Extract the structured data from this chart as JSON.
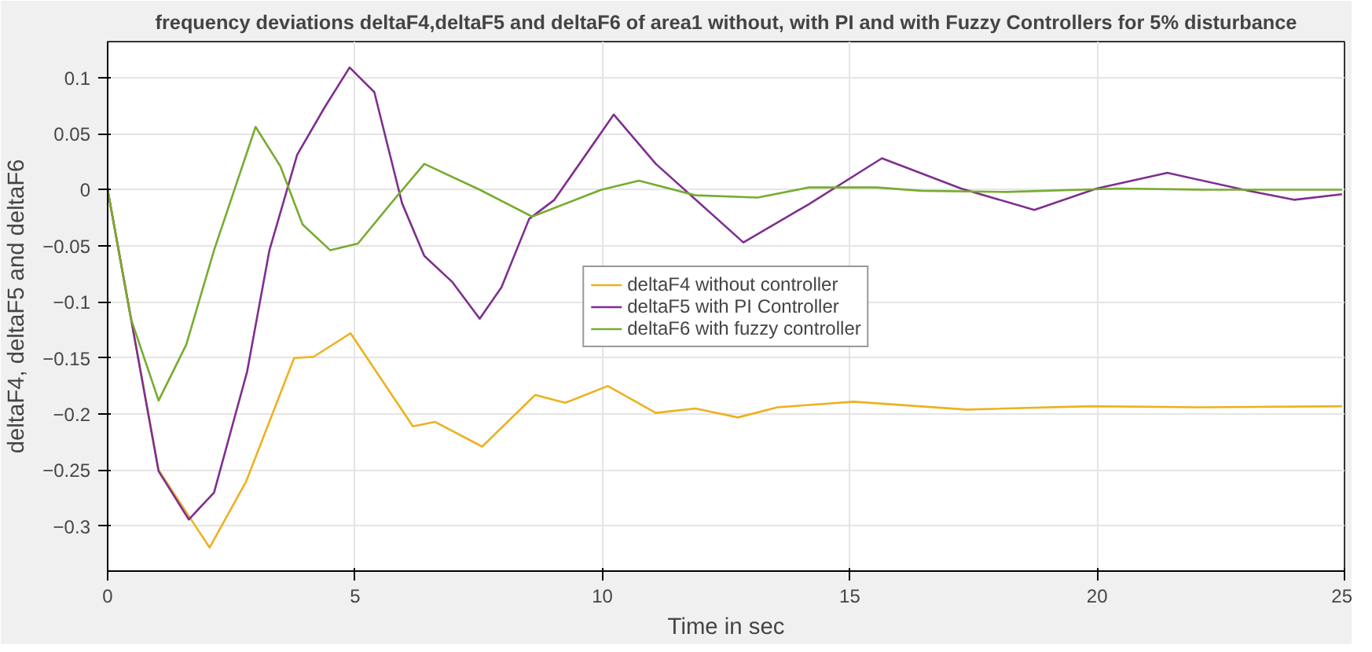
{
  "chart_data": {
    "type": "line",
    "title": "frequency deviations deltaF4,deltaF5 and deltaF6 of area1 without, with PI and with Fuzzy Controllers for 5% disturbance",
    "xlabel": "Time in sec",
    "ylabel": "deltaF4, deltaF5 and deltaF6",
    "xlim": [
      0,
      25
    ],
    "ylim": [
      -0.34,
      0.132
    ],
    "xticks": [
      0,
      5,
      10,
      15,
      20,
      25
    ],
    "yticks": [
      -0.3,
      -0.25,
      -0.2,
      -0.15,
      -0.1,
      -0.05,
      0,
      0.05,
      0.1
    ],
    "grid": true,
    "legend": "center",
    "marker": "none",
    "line_style": "solid",
    "series": [
      {
        "name": "deltaF4 without controller",
        "color": "#edb120",
        "x": [
          0,
          1.03,
          2.06,
          2.8,
          3.77,
          4.16,
          4.91,
          6.17,
          6.62,
          7.57,
          8.64,
          9.25,
          10.11,
          11.08,
          11.88,
          12.74,
          13.54,
          15.08,
          17.36,
          19.87,
          22.16,
          24.95
        ],
        "values": [
          0,
          -0.25,
          -0.319,
          -0.26,
          -0.15,
          -0.149,
          -0.128,
          -0.211,
          -0.207,
          -0.229,
          -0.183,
          -0.19,
          -0.175,
          -0.199,
          -0.195,
          -0.203,
          -0.194,
          -0.189,
          -0.196,
          -0.193,
          -0.194,
          -0.193
        ]
      },
      {
        "name": "deltaF5 with PI Controller",
        "color": "#7e2f8e",
        "x": [
          0,
          1.03,
          1.64,
          2.15,
          2.82,
          3.27,
          3.83,
          4.38,
          4.89,
          5.39,
          5.95,
          6.4,
          6.96,
          7.52,
          7.96,
          8.52,
          9.03,
          10.23,
          11.08,
          12.85,
          14.17,
          15.65,
          17.25,
          18.73,
          19.99,
          21.42,
          23.07,
          23.98,
          24.95
        ],
        "values": [
          0,
          -0.251,
          -0.294,
          -0.27,
          -0.162,
          -0.054,
          0.031,
          0.073,
          0.109,
          0.087,
          -0.012,
          -0.059,
          -0.082,
          -0.115,
          -0.087,
          -0.026,
          -0.009,
          0.067,
          0.023,
          -0.047,
          -0.013,
          0.028,
          0.001,
          -0.018,
          0.001,
          0.015,
          -0.001,
          -0.009,
          -0.004
        ]
      },
      {
        "name": "deltaF6 with fuzzy controller",
        "color": "#77ac30",
        "x": [
          0,
          0.47,
          1.03,
          1.59,
          2.15,
          2.99,
          3.49,
          3.94,
          4.5,
          5.06,
          5.73,
          6.4,
          7.52,
          8.58,
          9.98,
          10.74,
          11.88,
          13.14,
          14.17,
          15.54,
          16.45,
          18.16,
          20.45,
          22.16,
          24.95
        ],
        "values": [
          0,
          -0.115,
          -0.188,
          -0.138,
          -0.054,
          0.056,
          0.021,
          -0.031,
          -0.054,
          -0.048,
          -0.012,
          0.023,
          0,
          -0.024,
          0,
          0.008,
          -0.005,
          -0.007,
          0.002,
          0.002,
          -0.001,
          -0.002,
          0.001,
          0,
          0
        ]
      }
    ]
  }
}
